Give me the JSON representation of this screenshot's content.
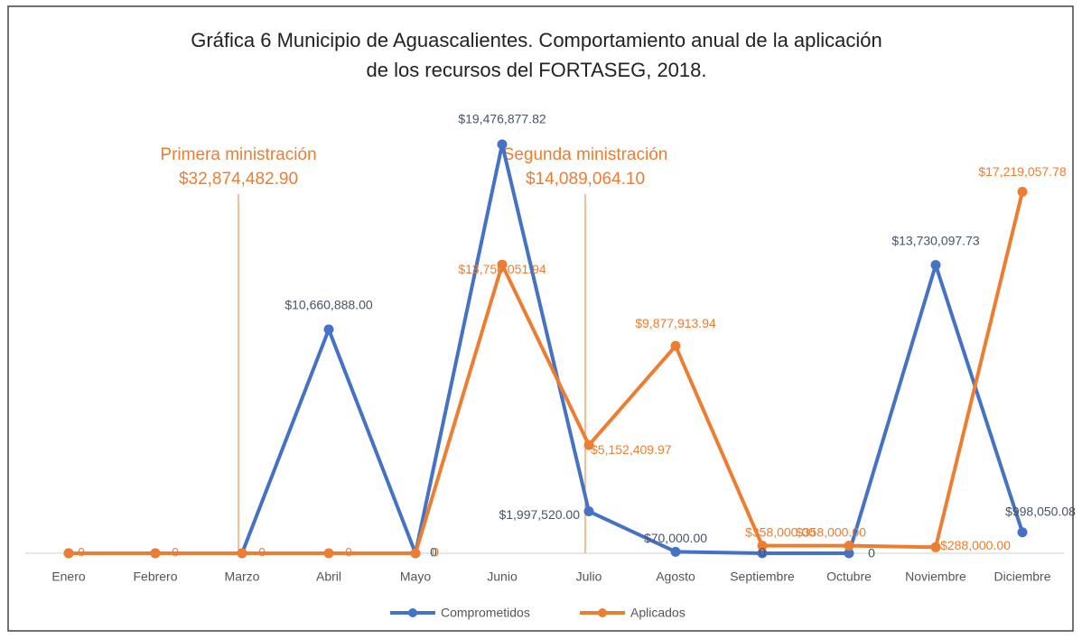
{
  "chart_data": {
    "type": "line",
    "title": [
      "Gráfica 6 Municipio de Aguascalientes. Comportamiento anual de la aplicación",
      "de los recursos del FORTASEG, 2018."
    ],
    "categories": [
      "Enero",
      "Febrero",
      "Marzo",
      "Abril",
      "Mayo",
      "Junio",
      "Julio",
      "Agosto",
      "Septiembre",
      "Octubre",
      "Noviembre",
      "Diciembre"
    ],
    "series": [
      {
        "name": "Comprometidos",
        "color": "#4472c4",
        "values": [
          0,
          0,
          0,
          10660888.0,
          0,
          19476877.82,
          1997520.0,
          70000.0,
          0,
          0,
          13730097.73,
          998050.08
        ],
        "value_labels": [
          null,
          null,
          null,
          "$10,660,888.00",
          "0",
          "$19,476,877.82",
          "$1,997,520.00",
          "$70,000.00",
          "0",
          "0",
          "$13,730,097.73",
          "$998,050.08"
        ]
      },
      {
        "name": "Aplicados",
        "color": "#ed7d31",
        "values": [
          0,
          0,
          0,
          0,
          0,
          13750051.94,
          5152409.97,
          9877913.94,
          358000.0,
          358000.0,
          288000.0,
          17219057.78
        ],
        "value_labels": [
          "0",
          "0",
          "0",
          "0",
          "0",
          "$13,750,051.94",
          "$5,152,409.97",
          "$9,877,913.94",
          "$358,000.00",
          "$358,000.00",
          "$288,000.00",
          "$17,219,057.78"
        ]
      }
    ],
    "annotations": [
      {
        "category": "Marzo",
        "text": [
          "Primera ministración",
          "$32,874,482.90"
        ]
      },
      {
        "category": "Julio",
        "text": [
          "Segunda ministración",
          "$14,089,064.10"
        ]
      }
    ],
    "legend": "bottom"
  }
}
